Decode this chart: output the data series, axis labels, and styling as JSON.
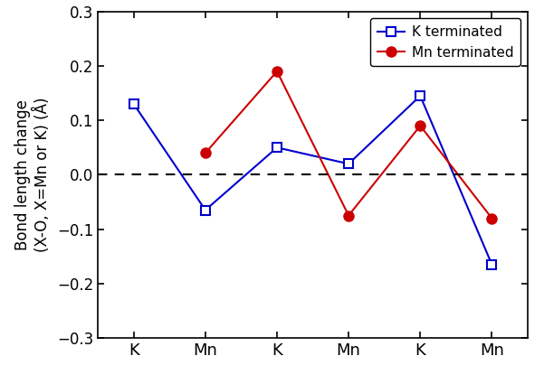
{
  "x_labels": [
    "K",
    "Mn",
    "K",
    "Mn",
    "K",
    "Mn"
  ],
  "x_positions": [
    0,
    1,
    2,
    3,
    4,
    5
  ],
  "blue_values": [
    0.13,
    -0.065,
    0.05,
    0.02,
    0.145,
    -0.165
  ],
  "red_values": [
    0.04,
    0.19,
    -0.075,
    0.09,
    -0.08
  ],
  "red_x": [
    1,
    2,
    3,
    4,
    5
  ],
  "blue_color": "#0000cc",
  "red_color": "#cc0000",
  "ylabel_line1": "Bond length change",
  "ylabel_line2": "(X-O, X=Mn or K) (Å)",
  "ylim": [
    -0.3,
    0.3
  ],
  "yticks": [
    -0.3,
    -0.2,
    -0.1,
    0.0,
    0.1,
    0.2,
    0.3
  ],
  "legend_k": "K terminated",
  "legend_mn": "Mn terminated",
  "background_color": "#ffffff",
  "figsize": [
    6.01,
    4.25
  ],
  "dpi": 100
}
